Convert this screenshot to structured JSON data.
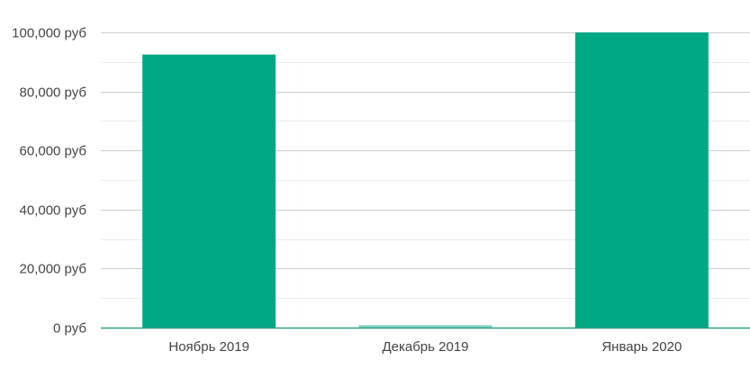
{
  "chart_data": {
    "type": "bar",
    "categories": [
      "Ноябрь 2019",
      "Декабрь 2019",
      "Январь 2020"
    ],
    "values": [
      92500,
      800,
      100000
    ],
    "ylim": [
      0,
      100000
    ],
    "yticks": [
      0,
      20000,
      40000,
      60000,
      80000,
      100000
    ],
    "ytick_labels": [
      "0 руб",
      "20,000 руб",
      "40,000 руб",
      "60,000 руб",
      "80,000 руб",
      "100,000 руб"
    ],
    "grid": true,
    "minor_grid": true,
    "colors": {
      "bar": "#00a884",
      "bar_small": "#7fd4c1",
      "grid_major": "#cccccc",
      "grid_minor": "#ebebeb",
      "baseline": "#2f9e86",
      "text": "#444444"
    }
  }
}
